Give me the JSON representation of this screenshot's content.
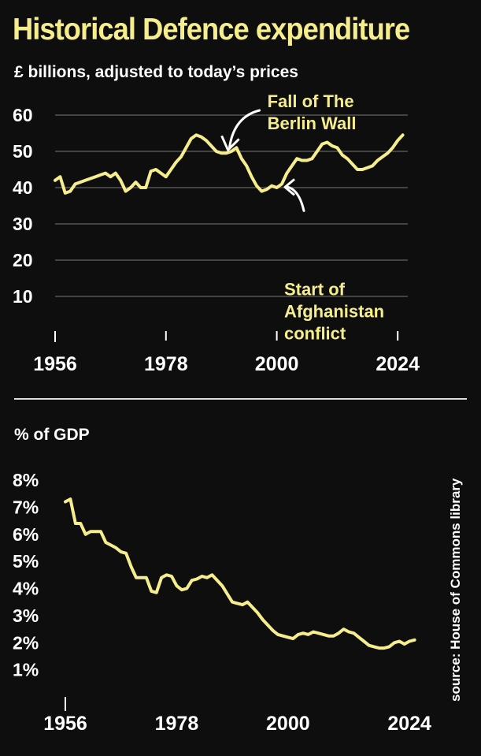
{
  "title": "Historical Defence expenditure",
  "source": "source: House of Commons library",
  "colors": {
    "line": "#f6ee8c",
    "background": "#0e0e0e",
    "text": "#ffffff",
    "grid": "#555555"
  },
  "chart_data": [
    {
      "type": "line",
      "subtitle": "£ billions, adjusted to today’s prices",
      "ylim": [
        0,
        60
      ],
      "yticks": [
        10,
        20,
        30,
        40,
        50,
        60
      ],
      "xlim": [
        1956,
        2026
      ],
      "xticks": [
        1956,
        1978,
        2000,
        2024
      ],
      "grid": true,
      "annotations": [
        {
          "lines": [
            "Fall of The",
            "Berlin Wall"
          ],
          "x": 1990,
          "y": 49.5
        },
        {
          "lines": [
            "Start of",
            "Afghanistan",
            "conflict"
          ],
          "x": 2001,
          "y": 41
        }
      ],
      "series": [
        {
          "name": "£ billions",
          "x": [
            1956,
            1957,
            1958,
            1959,
            1960,
            1961,
            1962,
            1963,
            1964,
            1965,
            1966,
            1967,
            1968,
            1969,
            1970,
            1971,
            1972,
            1973,
            1974,
            1975,
            1976,
            1977,
            1978,
            1979,
            1980,
            1981,
            1982,
            1983,
            1984,
            1985,
            1986,
            1987,
            1988,
            1989,
            1990,
            1991,
            1992,
            1993,
            1994,
            1995,
            1996,
            1997,
            1998,
            1999,
            2000,
            2001,
            2002,
            2003,
            2004,
            2005,
            2006,
            2007,
            2008,
            2009,
            2010,
            2011,
            2012,
            2013,
            2014,
            2015,
            2016,
            2017,
            2018,
            2019,
            2020,
            2021,
            2022,
            2023,
            2024,
            2025
          ],
          "y": [
            42,
            43,
            38.5,
            39,
            41,
            41.5,
            42,
            42.5,
            43,
            43.5,
            44,
            43,
            44,
            42,
            39,
            40,
            41.5,
            40,
            40,
            44.5,
            45,
            44,
            43,
            45,
            47,
            48.5,
            51,
            53.5,
            54.5,
            54,
            53,
            51.5,
            50,
            49.5,
            49.5,
            50,
            51,
            48,
            46,
            43,
            40.5,
            39,
            39.5,
            40.5,
            40,
            41,
            44,
            46,
            48,
            47.5,
            47.5,
            48,
            50,
            52,
            52.5,
            51.5,
            51,
            49,
            48,
            46.5,
            45,
            45,
            45.5,
            46,
            47.5,
            48.5,
            49.5,
            51,
            53,
            54.5
          ]
        }
      ]
    },
    {
      "type": "line",
      "subtitle": "% of GDP",
      "ylim": [
        0,
        8
      ],
      "yticks": [
        1,
        2,
        3,
        4,
        5,
        6,
        7,
        8
      ],
      "ytick_labels": [
        "1%",
        "2%",
        "3%",
        "4%",
        "5%",
        "6%",
        "7%",
        "8%"
      ],
      "xlim": [
        1956,
        2026
      ],
      "xticks": [
        1956,
        1978,
        2000,
        2024
      ],
      "grid": false,
      "series": [
        {
          "name": "% of GDP",
          "x": [
            1956,
            1957,
            1958,
            1959,
            1960,
            1961,
            1962,
            1963,
            1964,
            1965,
            1966,
            1967,
            1968,
            1969,
            1970,
            1971,
            1972,
            1973,
            1974,
            1975,
            1976,
            1977,
            1978,
            1979,
            1980,
            1981,
            1982,
            1983,
            1984,
            1985,
            1986,
            1987,
            1988,
            1989,
            1990,
            1991,
            1992,
            1993,
            1994,
            1995,
            1996,
            1997,
            1998,
            1999,
            2000,
            2001,
            2002,
            2003,
            2004,
            2005,
            2006,
            2007,
            2008,
            2009,
            2010,
            2011,
            2012,
            2013,
            2014,
            2015,
            2016,
            2017,
            2018,
            2019,
            2020,
            2021,
            2022,
            2023,
            2024,
            2025
          ],
          "y": [
            7.2,
            7.3,
            6.4,
            6.4,
            6.0,
            6.1,
            6.1,
            6.1,
            5.7,
            5.6,
            5.5,
            5.35,
            5.3,
            4.8,
            4.4,
            4.4,
            4.4,
            3.9,
            3.85,
            4.4,
            4.5,
            4.45,
            4.1,
            3.95,
            4.0,
            4.3,
            4.35,
            4.45,
            4.4,
            4.5,
            4.3,
            4.1,
            3.8,
            3.5,
            3.45,
            3.4,
            3.5,
            3.3,
            3.1,
            2.85,
            2.65,
            2.45,
            2.3,
            2.25,
            2.2,
            2.15,
            2.3,
            2.35,
            2.3,
            2.4,
            2.35,
            2.3,
            2.25,
            2.25,
            2.35,
            2.5,
            2.4,
            2.35,
            2.2,
            2.05,
            1.9,
            1.85,
            1.8,
            1.8,
            1.85,
            2.0,
            2.05,
            1.95,
            2.05,
            2.1
          ]
        }
      ]
    }
  ]
}
